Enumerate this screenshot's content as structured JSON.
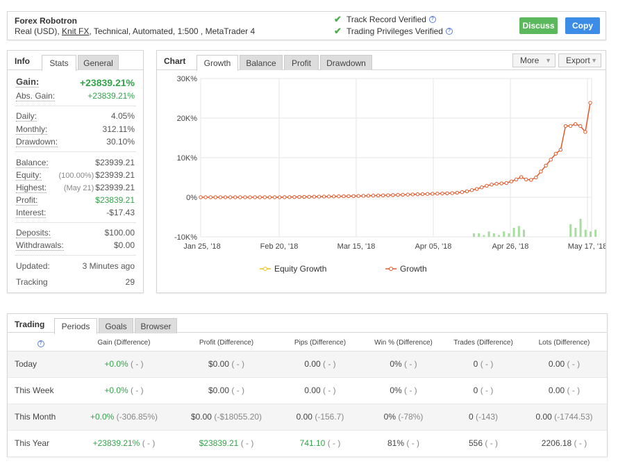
{
  "header": {
    "account_name": "Forex Robotron",
    "desc_prefix": "Real (USD), ",
    "broker": "Knit FX",
    "desc_suffix": ", Technical, Automated, 1:500 , MetaTrader 4",
    "verified_track": "Track Record Verified",
    "verified_trading": "Trading Privileges Verified",
    "discuss_label": "Discuss",
    "copy_label": "Copy"
  },
  "info": {
    "title": "Info",
    "tabs": [
      "Stats",
      "General"
    ],
    "gain_label": "Gain:",
    "gain_value": "+23839.21%",
    "abs_gain_label": "Abs. Gain:",
    "abs_gain_value": "+23839.21%",
    "daily_label": "Daily:",
    "daily_value": "4.05%",
    "monthly_label": "Monthly:",
    "monthly_value": "312.11%",
    "drawdown_label": "Drawdown:",
    "drawdown_value": "30.10%",
    "balance_label": "Balance:",
    "balance_value": "$23939.21",
    "equity_label": "Equity:",
    "equity_sub": "(100.00%)",
    "equity_value": "$23939.21",
    "highest_label": "Highest:",
    "highest_sub": "(May 21)",
    "highest_value": "$23939.21",
    "profit_label": "Profit:",
    "profit_value": "$23839.21",
    "interest_label": "Interest:",
    "interest_value": "-$17.43",
    "deposits_label": "Deposits:",
    "deposits_value": "$100.00",
    "withdrawals_label": "Withdrawals:",
    "withdrawals_value": "$0.00",
    "updated_label": "Updated:",
    "updated_value": "3 Minutes ago",
    "tracking_label": "Tracking",
    "tracking_value": "29"
  },
  "chart": {
    "title": "Chart",
    "tabs": [
      "Growth",
      "Balance",
      "Profit",
      "Drawdown"
    ],
    "more_label": "More",
    "export_label": "Export"
  },
  "chart_data": {
    "type": "line",
    "y_ticks": [
      "30K%",
      "20K%",
      "10K%",
      "0%",
      "-10K%"
    ],
    "ylim": [
      -10000,
      30000
    ],
    "x_ticks": [
      "Jan 25, '18",
      "Feb 20, '18",
      "Mar 15, '18",
      "Apr 05, '18",
      "Apr 26, '18",
      "May 17, '18"
    ],
    "grid": true,
    "legend": [
      "Equity Growth",
      "Growth"
    ],
    "legend_position": "bottom",
    "colors": {
      "equity": "#f0c419",
      "growth": "#e0592a",
      "bars": "#a8dca0"
    },
    "series": [
      {
        "name": "Growth",
        "values": [
          0,
          0,
          0,
          0,
          0,
          0,
          0,
          0,
          0,
          0,
          0,
          0,
          0,
          0,
          0,
          0,
          0,
          20,
          40,
          60,
          80,
          100,
          120,
          140,
          160,
          180,
          200,
          220,
          240,
          260,
          280,
          300,
          330,
          360,
          390,
          420,
          450,
          480,
          520,
          560,
          600,
          640,
          680,
          720,
          760,
          800,
          840,
          880,
          920,
          960,
          1000,
          1050,
          1150,
          1300,
          1500,
          1800,
          2100,
          2500,
          2900,
          3200,
          3400,
          3500,
          3600,
          4000,
          4500,
          5100,
          4500,
          4400,
          5000,
          6500,
          8000,
          9500,
          11000,
          12000,
          18000,
          18000,
          18500,
          18000,
          16500,
          23839
        ]
      }
    ],
    "bars": [
      0,
      0,
      0,
      0,
      0,
      0,
      0,
      0,
      0,
      0,
      0,
      0,
      0,
      0,
      0,
      0,
      0,
      0,
      0,
      0,
      0,
      0,
      0,
      0,
      0,
      0,
      0,
      0,
      0,
      0,
      0,
      0,
      0,
      0,
      0,
      0,
      0,
      0,
      0,
      0,
      0,
      0,
      0,
      0,
      0,
      0,
      0,
      0,
      0,
      0,
      0,
      0,
      0,
      0,
      0,
      0,
      0,
      0,
      0,
      0,
      0,
      0,
      0,
      0,
      0,
      0,
      0,
      0,
      0,
      0,
      0,
      0,
      0,
      0,
      0,
      0,
      0,
      0,
      0,
      0
    ]
  },
  "trading": {
    "title": "Trading",
    "tabs": [
      "Periods",
      "Goals",
      "Browser"
    ],
    "columns": [
      "Gain (Difference)",
      "Profit (Difference)",
      "Pips (Difference)",
      "Win % (Difference)",
      "Trades (Difference)",
      "Lots (Difference)"
    ],
    "rows": [
      {
        "period": "Today",
        "gain": "+0.0%",
        "gain_d": "( - )",
        "profit": "$0.00",
        "profit_d": "( - )",
        "pips": "0.00",
        "pips_d": "( - )",
        "win": "0%",
        "win_d": "( - )",
        "trades": "0",
        "trades_d": "( - )",
        "lots": "0.00",
        "lots_d": "( - )"
      },
      {
        "period": "This Week",
        "gain": "+0.0%",
        "gain_d": "( - )",
        "profit": "$0.00",
        "profit_d": "( - )",
        "pips": "0.00",
        "pips_d": "( - )",
        "win": "0%",
        "win_d": "( - )",
        "trades": "0",
        "trades_d": "( - )",
        "lots": "0.00",
        "lots_d": "( - )"
      },
      {
        "period": "This Month",
        "gain": "+0.0%",
        "gain_d": "(-306.85%)",
        "profit": "$0.00",
        "profit_d": "(-$18055.20)",
        "pips": "0.00",
        "pips_d": "(-156.7)",
        "win": "0%",
        "win_d": "(-78%)",
        "trades": "0",
        "trades_d": "(-143)",
        "lots": "0.00",
        "lots_d": "(-1744.53)"
      },
      {
        "period": "This Year",
        "gain": "+23839.21%",
        "gain_d": "( - )",
        "profit": "$23839.21",
        "profit_d": "( - )",
        "pips": "741.10",
        "pips_d": "( - )",
        "win": "81%",
        "win_d": "( - )",
        "trades": "556",
        "trades_d": "( - )",
        "lots": "2206.18",
        "lots_d": "( - )"
      }
    ]
  }
}
